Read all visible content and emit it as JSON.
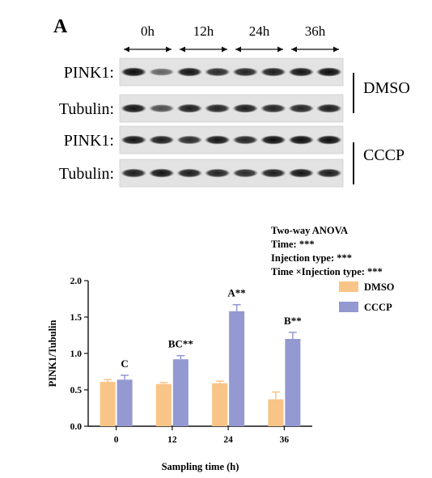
{
  "panel_label": "A",
  "western_blot": {
    "time_points": [
      "0h",
      "12h",
      "24h",
      "36h"
    ],
    "rows": [
      {
        "label": "PINK1:",
        "group": "DMSO"
      },
      {
        "label": "Tubulin:",
        "group": "DMSO"
      },
      {
        "label": "PINK1:",
        "group": "CCCP"
      },
      {
        "label": "Tubulin:",
        "group": "CCCP"
      }
    ],
    "group_labels": [
      "DMSO",
      "CCCP"
    ]
  },
  "stats": {
    "title": "Two-way ANOVA",
    "lines": [
      "Time: ***",
      "Injection type: ***",
      "Time ×Injection type: ***"
    ]
  },
  "chart_data": {
    "type": "bar",
    "categories": [
      "0",
      "12",
      "24",
      "36"
    ],
    "series": [
      {
        "name": "DMSO",
        "values": [
          0.61,
          0.58,
          0.59,
          0.37
        ],
        "errors": [
          0.03,
          0.02,
          0.03,
          0.1
        ],
        "color": "#f9c487"
      },
      {
        "name": "CCCP",
        "values": [
          0.64,
          0.92,
          1.58,
          1.2
        ],
        "errors": [
          0.06,
          0.05,
          0.09,
          0.09
        ],
        "color": "#9499d1"
      }
    ],
    "annotations": [
      "C",
      "BC**",
      "A**",
      "B**"
    ],
    "xlabel": "Sampling time (h)",
    "ylabel": "PINK1/Tubulin",
    "ylim": [
      0,
      2.0
    ],
    "yticks": [
      "0.0",
      "0.5",
      "1.0",
      "1.5",
      "2.0"
    ],
    "legend_position": "top-right"
  }
}
